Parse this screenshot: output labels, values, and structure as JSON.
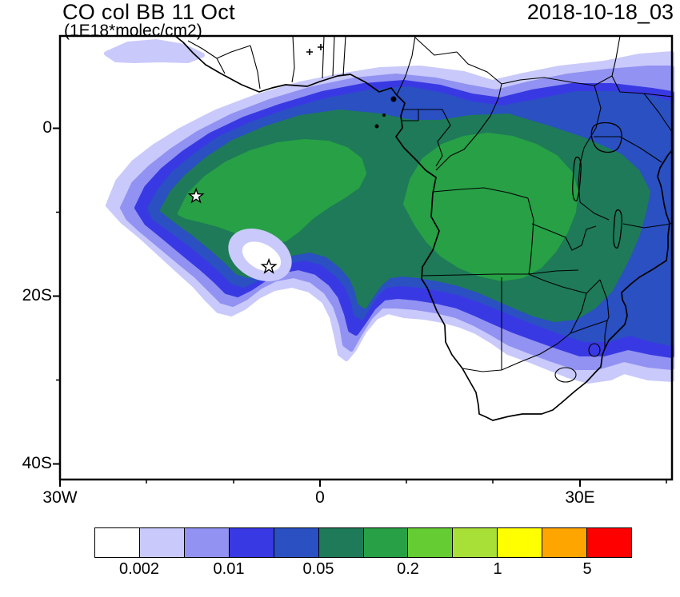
{
  "header": {
    "title": "CO col BB 11 Oct",
    "subtitle": "(1E18*molec/cm2)",
    "date_label": "2018-10-18_03"
  },
  "axes": {
    "y_labels": [
      "0",
      "20S",
      "40S"
    ],
    "x_labels": [
      "30W",
      "0",
      "30E"
    ]
  },
  "colorbar": {
    "colors": [
      "#FFFFFF",
      "#C9C9FB",
      "#9292F2",
      "#3939E3",
      "#2A50C2",
      "#1E7A58",
      "#27A046",
      "#66CC33",
      "#A8E038",
      "#FFFF00",
      "#FFA500",
      "#FF0000"
    ],
    "tick_labels": [
      "0.002",
      "0.01",
      "0.05",
      "0.2",
      "1",
      "5"
    ]
  },
  "chart_data": {
    "type": "heatmap",
    "title": "CO col BB 11 Oct",
    "units": "1E18*molec/cm2",
    "timestamp_label": "2018-10-18_03",
    "projection": "lat-lon map of Africa and South Atlantic",
    "lon_range_deg": [
      -30,
      41
    ],
    "lat_range_deg": [
      -41,
      11
    ],
    "x_tick_labels": [
      "30W",
      "0",
      "30E"
    ],
    "y_tick_labels": [
      "0",
      "20S",
      "40S"
    ],
    "labeled_levels": [
      0.002,
      0.01,
      0.05,
      0.2,
      1,
      5
    ],
    "n_color_bins": 12,
    "markers": [
      {
        "shape": "star",
        "lon": -14.3,
        "lat": -8.1
      },
      {
        "shape": "star",
        "lon": -5.9,
        "lat": -16.5
      }
    ],
    "field_summary": "Biomass-burning CO column plume: values >0.05 span from ~18W over the South Atlantic across central and southern Africa to ~40E between ~2N and ~24S; core values ~0.2-0.5 over the SE Atlantic (5-15S, 10W-10E) and over central Africa (15-30E, 2-18S); light (0.002-0.01) halo extends north of the equator, down the Namibian coast, and over eastern South Africa."
  }
}
